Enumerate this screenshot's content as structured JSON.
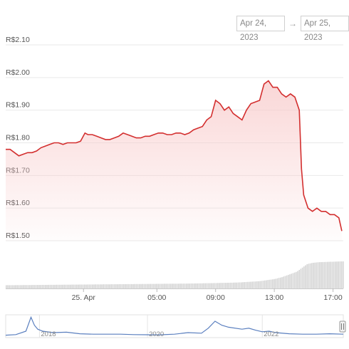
{
  "range": {
    "from": "Apr 24, 2023",
    "arrow": "→",
    "to": "Apr 25, 2023"
  },
  "colors": {
    "price_line": "#d32f2f",
    "price_fill_top": "#f8c9c9",
    "volume": "#d4d4d4",
    "navigator_line": "#5a7fbf",
    "grid": "#e9e9e9"
  },
  "chart_data": {
    "type": "area",
    "title": "",
    "ylabel": "",
    "ylim": [
      1.5,
      2.1
    ],
    "y_tick_values": [
      2.1,
      2.0,
      1.9,
      1.8,
      1.7,
      1.6,
      1.5
    ],
    "y_tick_labels": [
      "R$2.10",
      "R$2.00",
      "R$1.90",
      "R$1.80",
      "R$1.70",
      "R$1.60",
      "R$1.50"
    ],
    "x_tick_labels": [
      "25. Apr",
      "05:00",
      "09:00",
      "13:00",
      "17:00"
    ],
    "x_tick_hours": [
      0,
      5,
      9,
      13,
      17
    ],
    "x_hours_range": [
      -5.3,
      17.7
    ],
    "series": [
      {
        "values_hours": [
          -5.3,
          -5.0,
          -4.7,
          -4.4,
          -4.1,
          -3.8,
          -3.5,
          -3.2,
          -2.9,
          -2.6,
          -2.3,
          -2.0,
          -1.7,
          -1.4,
          -1.1,
          -0.8,
          -0.5,
          -0.2,
          0.1,
          0.3,
          0.6,
          0.9,
          1.2,
          1.5,
          1.8,
          2.1,
          2.4,
          2.7,
          3.0,
          3.3,
          3.6,
          3.9,
          4.2,
          4.5,
          4.8,
          5.1,
          5.4,
          5.7,
          6.0,
          6.3,
          6.6,
          6.9,
          7.2,
          7.5,
          7.8,
          8.1,
          8.4,
          8.7,
          9.0,
          9.3,
          9.6,
          9.9,
          10.2,
          10.5,
          10.8,
          11.1,
          11.4,
          11.7,
          12.0,
          12.3,
          12.6,
          12.9,
          13.2,
          13.5,
          13.8,
          14.1,
          14.4,
          14.7,
          14.85,
          15.0,
          15.3,
          15.6,
          15.9,
          16.2,
          16.5,
          16.8,
          17.1,
          17.4,
          17.6
        ],
        "values": [
          1.78,
          1.78,
          1.77,
          1.76,
          1.765,
          1.77,
          1.77,
          1.775,
          1.785,
          1.79,
          1.795,
          1.8,
          1.8,
          1.795,
          1.8,
          1.8,
          1.8,
          1.805,
          1.83,
          1.825,
          1.825,
          1.82,
          1.815,
          1.81,
          1.81,
          1.815,
          1.82,
          1.83,
          1.825,
          1.82,
          1.815,
          1.815,
          1.82,
          1.82,
          1.825,
          1.83,
          1.83,
          1.825,
          1.825,
          1.83,
          1.83,
          1.825,
          1.83,
          1.84,
          1.845,
          1.85,
          1.87,
          1.88,
          1.93,
          1.92,
          1.9,
          1.91,
          1.89,
          1.88,
          1.87,
          1.9,
          1.92,
          1.925,
          1.93,
          1.98,
          1.99,
          1.97,
          1.97,
          1.95,
          1.94,
          1.95,
          1.94,
          1.9,
          1.72,
          1.64,
          1.6,
          1.59,
          1.6,
          1.59,
          1.59,
          1.58,
          1.58,
          1.57,
          1.53
        ]
      }
    ],
    "volume": {
      "values_hours": [
        -5.3,
        -3.0,
        -1.0,
        1.0,
        3.0,
        5.0,
        7.0,
        9.0,
        10.5,
        12.0,
        13.0,
        13.5,
        14.0,
        14.5,
        15.0,
        15.2,
        15.6,
        16.0,
        16.5,
        17.0,
        17.6
      ],
      "values": [
        0.12,
        0.13,
        0.14,
        0.15,
        0.16,
        0.17,
        0.18,
        0.2,
        0.22,
        0.27,
        0.35,
        0.42,
        0.52,
        0.62,
        0.82,
        0.9,
        0.95,
        0.97,
        0.98,
        0.99,
        1.0
      ]
    },
    "navigator": {
      "tick_labels": [
        "2018",
        "2020",
        "2022"
      ],
      "tick_positions": [
        0.1,
        0.42,
        0.76
      ],
      "x": [
        0,
        0.03,
        0.06,
        0.075,
        0.085,
        0.095,
        0.11,
        0.14,
        0.18,
        0.22,
        0.26,
        0.3,
        0.34,
        0.38,
        0.42,
        0.46,
        0.5,
        0.54,
        0.58,
        0.6,
        0.62,
        0.64,
        0.66,
        0.7,
        0.72,
        0.74,
        0.76,
        0.78,
        0.8,
        0.84,
        0.88,
        0.92,
        0.96,
        1.0
      ],
      "y": [
        0.05,
        0.08,
        0.25,
        0.95,
        0.55,
        0.35,
        0.25,
        0.18,
        0.2,
        0.12,
        0.1,
        0.1,
        0.1,
        0.08,
        0.07,
        0.07,
        0.1,
        0.18,
        0.15,
        0.4,
        0.75,
        0.55,
        0.45,
        0.35,
        0.4,
        0.3,
        0.22,
        0.25,
        0.18,
        0.12,
        0.1,
        0.1,
        0.12,
        0.1
      ]
    }
  }
}
